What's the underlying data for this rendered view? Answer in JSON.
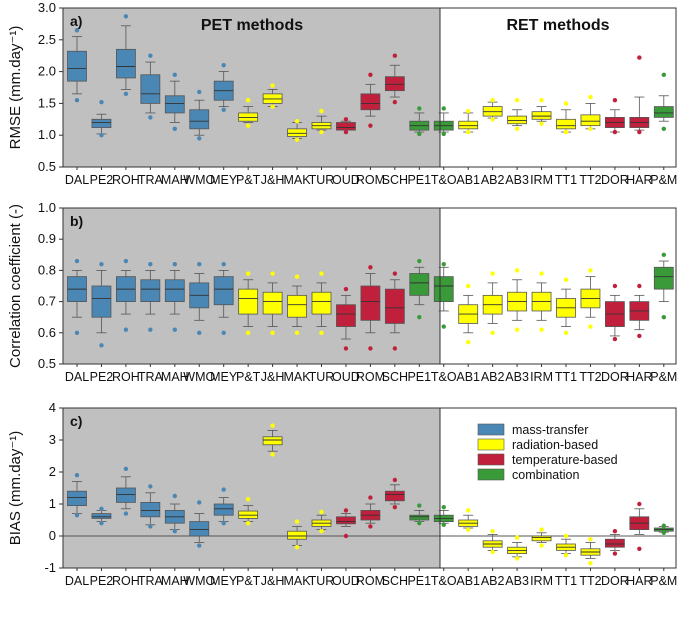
{
  "chart_data": {
    "type": "boxplot",
    "categories": [
      "DAL",
      "PE2",
      "ROH",
      "TRA",
      "MAH",
      "WMO",
      "MEY",
      "P&T",
      "J&H",
      "MAK",
      "TUR",
      "OUD",
      "ROM",
      "SCH",
      "PE1",
      "T&O",
      "AB1",
      "AB2",
      "AB3",
      "IRM",
      "TT1",
      "TT2",
      "DOR",
      "HAR",
      "P&M"
    ],
    "group_of": [
      "mt",
      "mt",
      "mt",
      "mt",
      "mt",
      "mt",
      "mt",
      "rad",
      "rad",
      "rad",
      "rad",
      "temp",
      "temp",
      "temp",
      "comb",
      "comb",
      "rad",
      "rad",
      "rad",
      "rad",
      "rad",
      "rad",
      "temp",
      "temp",
      "comb"
    ],
    "sections": {
      "pet": "PET methods",
      "ret": "RET methods"
    },
    "legend": [
      {
        "key": "mt",
        "label": "mass-transfer",
        "color": "#4a87b4"
      },
      {
        "key": "rad",
        "label": "radiation-based",
        "color": "#ffff00"
      },
      {
        "key": "temp",
        "label": "temperature-based",
        "color": "#c0203c"
      },
      {
        "key": "comb",
        "label": "combination",
        "color": "#3a9a3a"
      }
    ],
    "panels": [
      {
        "tag": "a)",
        "ylabel": "RMSE (mm.day⁻¹)",
        "ylim": [
          0.5,
          3.0
        ],
        "yticks": [
          "0.5",
          "1.0",
          "1.5",
          "2.0",
          "2.5",
          "3.0"
        ],
        "boxes": [
          [
            1.65,
            1.85,
            2.05,
            2.32,
            2.55,
            [
              1.55,
              2.65
            ]
          ],
          [
            1.02,
            1.12,
            1.2,
            1.25,
            1.33,
            [
              1.0,
              1.52
            ]
          ],
          [
            1.72,
            1.9,
            2.08,
            2.35,
            2.72,
            [
              1.65,
              2.87
            ]
          ],
          [
            1.35,
            1.5,
            1.65,
            1.95,
            2.15,
            [
              1.28,
              2.25
            ]
          ],
          [
            1.2,
            1.35,
            1.5,
            1.62,
            1.85,
            [
              1.1,
              1.95
            ]
          ],
          [
            1.0,
            1.1,
            1.22,
            1.4,
            1.55,
            [
              0.95,
              1.68
            ]
          ],
          [
            1.45,
            1.55,
            1.7,
            1.85,
            2.0,
            [
              1.4,
              2.1
            ]
          ],
          [
            1.2,
            1.22,
            1.28,
            1.35,
            1.45,
            [
              1.15,
              1.55
            ]
          ],
          [
            1.45,
            1.5,
            1.57,
            1.65,
            1.72,
            [
              1.45,
              1.78
            ]
          ],
          [
            0.95,
            0.98,
            1.03,
            1.1,
            1.2,
            [
              0.93,
              1.22
            ]
          ],
          [
            1.08,
            1.1,
            1.15,
            1.2,
            1.3,
            [
              1.05,
              1.38
            ]
          ],
          [
            1.08,
            1.08,
            1.12,
            1.2,
            1.22,
            [
              1.05,
              1.25
            ]
          ],
          [
            1.3,
            1.4,
            1.5,
            1.65,
            1.8,
            [
              1.15,
              1.95
            ]
          ],
          [
            1.6,
            1.7,
            1.8,
            1.92,
            2.1,
            [
              1.52,
              2.25
            ]
          ],
          [
            1.05,
            1.08,
            1.15,
            1.22,
            1.35,
            [
              1.02,
              1.42
            ]
          ],
          [
            1.05,
            1.08,
            1.15,
            1.22,
            1.35,
            [
              1.02,
              1.42
            ]
          ],
          [
            1.05,
            1.1,
            1.15,
            1.22,
            1.35,
            [
              1.05,
              1.38
            ]
          ],
          [
            1.27,
            1.3,
            1.37,
            1.45,
            1.52,
            [
              1.25,
              1.55
            ]
          ],
          [
            1.15,
            1.18,
            1.23,
            1.3,
            1.4,
            [
              1.1,
              1.55
            ]
          ],
          [
            1.22,
            1.25,
            1.3,
            1.37,
            1.45,
            [
              1.18,
              1.55
            ]
          ],
          [
            1.05,
            1.1,
            1.15,
            1.25,
            1.4,
            [
              1.05,
              1.5
            ]
          ],
          [
            1.1,
            1.15,
            1.22,
            1.32,
            1.5,
            [
              1.1,
              1.6
            ]
          ],
          [
            1.05,
            1.12,
            1.2,
            1.28,
            1.4,
            [
              1.05,
              1.55
            ]
          ],
          [
            1.08,
            1.12,
            1.2,
            1.28,
            1.6,
            [
              1.05,
              2.22
            ]
          ],
          [
            1.22,
            1.28,
            1.35,
            1.45,
            1.62,
            [
              1.1,
              1.95
            ]
          ]
        ]
      },
      {
        "tag": "b)",
        "ylabel": "Correlation coefficient (-)",
        "ylim": [
          0.5,
          1.0
        ],
        "yticks": [
          "0.5",
          "0.6",
          "0.7",
          "0.8",
          "0.9",
          "1.0"
        ],
        "boxes": [
          [
            0.65,
            0.7,
            0.74,
            0.78,
            0.8,
            [
              0.6,
              0.83
            ]
          ],
          [
            0.6,
            0.65,
            0.71,
            0.75,
            0.8,
            [
              0.56,
              0.82
            ]
          ],
          [
            0.66,
            0.7,
            0.74,
            0.78,
            0.8,
            [
              0.61,
              0.83
            ]
          ],
          [
            0.66,
            0.7,
            0.74,
            0.77,
            0.8,
            [
              0.61,
              0.82
            ]
          ],
          [
            0.66,
            0.7,
            0.74,
            0.77,
            0.8,
            [
              0.61,
              0.82
            ]
          ],
          [
            0.64,
            0.68,
            0.72,
            0.76,
            0.79,
            [
              0.6,
              0.82
            ]
          ],
          [
            0.65,
            0.69,
            0.74,
            0.78,
            0.8,
            [
              0.6,
              0.82
            ]
          ],
          [
            0.62,
            0.66,
            0.71,
            0.74,
            0.77,
            [
              0.6,
              0.79
            ]
          ],
          [
            0.62,
            0.66,
            0.7,
            0.73,
            0.76,
            [
              0.6,
              0.79
            ]
          ],
          [
            0.62,
            0.65,
            0.69,
            0.72,
            0.75,
            [
              0.6,
              0.78
            ]
          ],
          [
            0.62,
            0.66,
            0.7,
            0.73,
            0.76,
            [
              0.6,
              0.79
            ]
          ],
          [
            0.58,
            0.62,
            0.66,
            0.69,
            0.72,
            [
              0.55,
              0.74
            ]
          ],
          [
            0.6,
            0.64,
            0.7,
            0.75,
            0.79,
            [
              0.55,
              0.81
            ]
          ],
          [
            0.6,
            0.63,
            0.68,
            0.74,
            0.77,
            [
              0.55,
              0.79
            ]
          ],
          [
            0.69,
            0.72,
            0.76,
            0.79,
            0.81,
            [
              0.65,
              0.83
            ]
          ],
          [
            0.67,
            0.7,
            0.75,
            0.78,
            0.81,
            [
              0.62,
              0.82
            ]
          ],
          [
            0.6,
            0.63,
            0.66,
            0.69,
            0.72,
            [
              0.57,
              0.75
            ]
          ],
          [
            0.63,
            0.66,
            0.69,
            0.72,
            0.76,
            [
              0.6,
              0.79
            ]
          ],
          [
            0.64,
            0.67,
            0.7,
            0.73,
            0.77,
            [
              0.61,
              0.8
            ]
          ],
          [
            0.64,
            0.67,
            0.7,
            0.73,
            0.76,
            [
              0.61,
              0.79
            ]
          ],
          [
            0.62,
            0.65,
            0.68,
            0.71,
            0.74,
            [
              0.6,
              0.77
            ]
          ],
          [
            0.65,
            0.68,
            0.71,
            0.74,
            0.78,
            [
              0.62,
              0.8
            ]
          ],
          [
            0.59,
            0.62,
            0.66,
            0.7,
            0.72,
            [
              0.58,
              0.75
            ]
          ],
          [
            0.61,
            0.64,
            0.67,
            0.7,
            0.72,
            [
              0.59,
              0.75
            ]
          ],
          [
            0.7,
            0.74,
            0.78,
            0.81,
            0.83,
            [
              0.65,
              0.85
            ]
          ]
        ]
      },
      {
        "tag": "c)",
        "ylabel": "BIAS (mm.day⁻¹)",
        "ylim": [
          -1,
          4
        ],
        "yticks": [
          "-1",
          "0",
          "1",
          "2",
          "3",
          "4"
        ],
        "boxes": [
          [
            0.7,
            0.95,
            1.2,
            1.4,
            1.7,
            [
              0.65,
              1.9
            ]
          ],
          [
            0.45,
            0.55,
            0.6,
            0.7,
            0.8,
            [
              0.4,
              0.85
            ]
          ],
          [
            0.85,
            1.05,
            1.3,
            1.5,
            1.85,
            [
              0.7,
              2.1
            ]
          ],
          [
            0.35,
            0.6,
            0.8,
            1.05,
            1.35,
            [
              0.3,
              1.55
            ]
          ],
          [
            0.2,
            0.4,
            0.6,
            0.8,
            1.0,
            [
              0.15,
              1.25
            ]
          ],
          [
            -0.2,
            0.0,
            0.2,
            0.45,
            0.7,
            [
              -0.3,
              1.05
            ]
          ],
          [
            0.45,
            0.65,
            0.85,
            1.0,
            1.2,
            [
              0.4,
              1.45
            ]
          ],
          [
            0.45,
            0.55,
            0.65,
            0.78,
            0.95,
            [
              0.4,
              1.15
            ]
          ],
          [
            2.65,
            2.85,
            3.0,
            3.1,
            3.3,
            [
              2.55,
              3.45
            ]
          ],
          [
            -0.3,
            -0.1,
            0.0,
            0.15,
            0.3,
            [
              -0.35,
              0.45
            ]
          ],
          [
            0.2,
            0.3,
            0.4,
            0.5,
            0.65,
            [
              0.15,
              0.75
            ]
          ],
          [
            0.3,
            0.38,
            0.45,
            0.6,
            0.7,
            [
              0.0,
              0.8
            ]
          ],
          [
            0.4,
            0.5,
            0.65,
            0.8,
            1.0,
            [
              0.3,
              1.2
            ]
          ],
          [
            1.0,
            1.1,
            1.3,
            1.4,
            1.6,
            [
              0.9,
              1.75
            ]
          ],
          [
            0.45,
            0.5,
            0.6,
            0.65,
            0.8,
            [
              0.4,
              0.95
            ]
          ],
          [
            0.4,
            0.45,
            0.55,
            0.65,
            0.8,
            [
              0.35,
              0.9
            ]
          ],
          [
            0.25,
            0.3,
            0.4,
            0.5,
            0.65,
            [
              0.2,
              0.8
            ]
          ],
          [
            -0.45,
            -0.35,
            -0.25,
            -0.15,
            0.05,
            [
              -0.5,
              0.15
            ]
          ],
          [
            -0.65,
            -0.55,
            -0.45,
            -0.35,
            -0.2,
            [
              -0.7,
              -0.05
            ]
          ],
          [
            -0.2,
            -0.15,
            -0.05,
            0.0,
            0.1,
            [
              -0.3,
              0.2
            ]
          ],
          [
            -0.55,
            -0.45,
            -0.35,
            -0.25,
            -0.1,
            [
              -0.6,
              0.0
            ]
          ],
          [
            -0.7,
            -0.6,
            -0.5,
            -0.4,
            -0.2,
            [
              -0.85,
              -0.1
            ]
          ],
          [
            -0.45,
            -0.35,
            -0.25,
            -0.1,
            0.05,
            [
              -0.55,
              0.15
            ]
          ],
          [
            0.05,
            0.2,
            0.4,
            0.6,
            0.85,
            [
              -0.4,
              1.0
            ]
          ],
          [
            0.12,
            0.15,
            0.2,
            0.25,
            0.3,
            [
              0.1,
              0.32
            ]
          ]
        ]
      }
    ]
  }
}
